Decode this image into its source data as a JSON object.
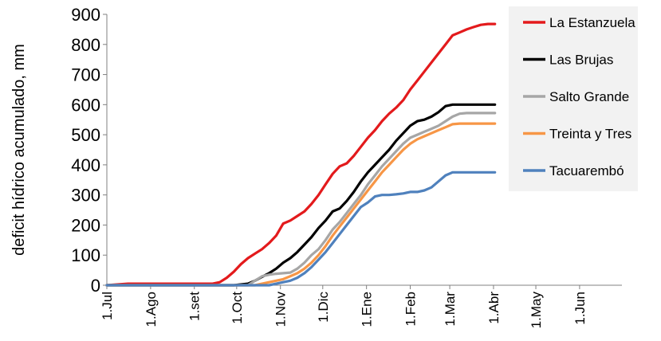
{
  "chart_data": {
    "type": "line",
    "title": "",
    "xlabel": "",
    "ylabel": "deficit hídrico acumulado, mm",
    "ylim": [
      0,
      900
    ],
    "yticks": [
      0,
      100,
      200,
      300,
      400,
      500,
      600,
      700,
      800,
      900
    ],
    "xlim": [
      0,
      365
    ],
    "xticks": [
      {
        "label": "1.Jul",
        "day": 0
      },
      {
        "label": "1.Ago",
        "day": 31
      },
      {
        "label": "1.set",
        "day": 62
      },
      {
        "label": "1.Oct",
        "day": 92
      },
      {
        "label": "1.Nov",
        "day": 123
      },
      {
        "label": "1.Dic",
        "day": 153
      },
      {
        "label": "1.Ene",
        "day": 184
      },
      {
        "label": "1.Feb",
        "day": 215
      },
      {
        "label": "1.Mar",
        "day": 243
      },
      {
        "label": "1.Abr",
        "day": 274
      },
      {
        "label": "1.May",
        "day": 304
      },
      {
        "label": "1.Jun",
        "day": 335
      }
    ],
    "legend_position": "right",
    "series": [
      {
        "name": "La Estanzuela",
        "color": "#e31a1c",
        "x": [
          0,
          15,
          30,
          60,
          75,
          80,
          85,
          90,
          95,
          100,
          105,
          110,
          115,
          120,
          125,
          130,
          135,
          140,
          145,
          150,
          155,
          160,
          165,
          170,
          175,
          180,
          185,
          190,
          195,
          200,
          205,
          210,
          215,
          220,
          225,
          230,
          235,
          240,
          245,
          250,
          255,
          260,
          265,
          270,
          275
        ],
        "y": [
          0,
          5,
          5,
          5,
          5,
          10,
          25,
          45,
          70,
          90,
          105,
          120,
          140,
          165,
          205,
          215,
          230,
          245,
          270,
          300,
          335,
          370,
          395,
          405,
          430,
          460,
          490,
          515,
          545,
          570,
          590,
          615,
          650,
          680,
          710,
          740,
          770,
          800,
          830,
          840,
          850,
          858,
          865,
          868,
          868
        ]
      },
      {
        "name": "Las Brujas",
        "color": "#000000",
        "x": [
          0,
          90,
          100,
          105,
          110,
          115,
          120,
          125,
          130,
          135,
          140,
          145,
          150,
          155,
          160,
          165,
          170,
          175,
          180,
          185,
          190,
          195,
          200,
          205,
          210,
          215,
          220,
          225,
          230,
          235,
          240,
          245,
          250,
          255,
          260,
          265,
          270,
          275
        ],
        "y": [
          0,
          0,
          5,
          15,
          28,
          40,
          55,
          75,
          90,
          110,
          135,
          160,
          190,
          215,
          245,
          255,
          280,
          310,
          345,
          375,
          400,
          425,
          450,
          480,
          505,
          530,
          545,
          550,
          560,
          575,
          595,
          600,
          600,
          600,
          600,
          600,
          600,
          600
        ]
      },
      {
        "name": "Salto Grande",
        "color": "#a6a6a6",
        "x": [
          0,
          100,
          105,
          110,
          115,
          120,
          125,
          130,
          135,
          140,
          145,
          150,
          155,
          160,
          165,
          170,
          175,
          180,
          185,
          190,
          195,
          200,
          205,
          210,
          215,
          220,
          225,
          230,
          235,
          240,
          245,
          250,
          255,
          260,
          265,
          270,
          275
        ],
        "y": [
          0,
          0,
          15,
          30,
          35,
          38,
          40,
          42,
          55,
          75,
          100,
          120,
          150,
          185,
          210,
          240,
          270,
          300,
          335,
          365,
          395,
          420,
          445,
          470,
          490,
          500,
          510,
          520,
          530,
          545,
          560,
          570,
          572,
          572,
          572,
          572,
          572
        ]
      },
      {
        "name": "Treinta y Tres",
        "color": "#f79646",
        "x": [
          0,
          105,
          110,
          115,
          120,
          125,
          130,
          135,
          140,
          145,
          150,
          155,
          160,
          165,
          170,
          175,
          180,
          185,
          190,
          195,
          200,
          205,
          210,
          215,
          220,
          225,
          230,
          235,
          240,
          245,
          250,
          255,
          260,
          265,
          270,
          275
        ],
        "y": [
          0,
          0,
          5,
          10,
          15,
          20,
          30,
          40,
          55,
          75,
          100,
          130,
          165,
          195,
          225,
          255,
          285,
          315,
          345,
          375,
          400,
          425,
          450,
          470,
          485,
          495,
          505,
          515,
          525,
          535,
          537,
          537,
          537,
          537,
          537,
          537
        ]
      },
      {
        "name": "Tacuarembó",
        "color": "#4f81bd",
        "x": [
          0,
          115,
          120,
          125,
          130,
          135,
          140,
          145,
          150,
          155,
          160,
          165,
          170,
          175,
          180,
          185,
          190,
          195,
          200,
          205,
          210,
          215,
          220,
          225,
          230,
          235,
          240,
          245,
          250,
          255,
          260,
          265,
          270,
          275
        ],
        "y": [
          0,
          0,
          5,
          10,
          15,
          25,
          40,
          60,
          85,
          110,
          140,
          170,
          200,
          230,
          260,
          275,
          295,
          300,
          300,
          302,
          305,
          310,
          310,
          315,
          325,
          345,
          365,
          375,
          375,
          375,
          375,
          375,
          375,
          375
        ]
      }
    ]
  }
}
